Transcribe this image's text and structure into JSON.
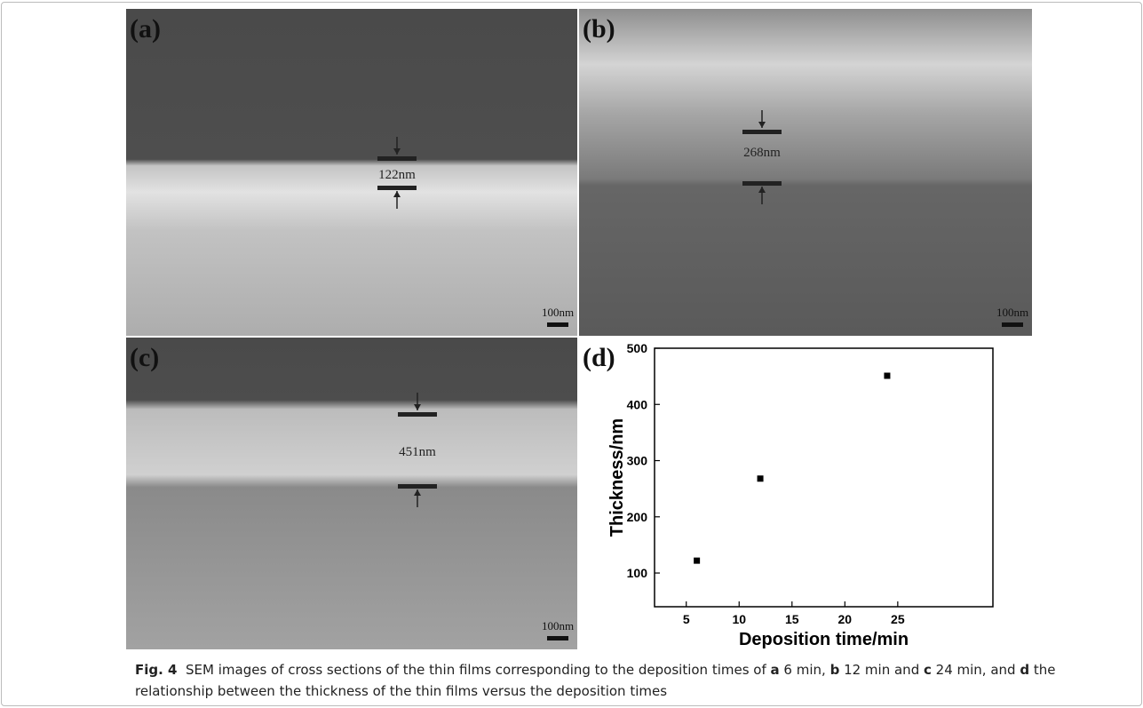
{
  "panels": [
    {
      "label": "(a)",
      "thickness": "122nm",
      "scale": "100nm"
    },
    {
      "label": "(b)",
      "thickness": "268nm",
      "scale": "100nm"
    },
    {
      "label": "(c)",
      "thickness": "451nm",
      "scale": "100nm"
    }
  ],
  "chart_data": {
    "type": "scatter",
    "panel_label": "(d)",
    "x_label": "Deposition time/min",
    "y_label": "Thickness/nm",
    "x": [
      6,
      12,
      24
    ],
    "values": [
      122,
      268,
      451
    ],
    "color": "#000000",
    "xlim": [
      2,
      34
    ],
    "xticks": [
      5,
      10,
      15,
      20,
      25
    ],
    "ylim": [
      40,
      500
    ],
    "yticks": [
      100,
      200,
      300,
      400,
      500
    ],
    "grid": false
  },
  "caption": {
    "parts": [
      {
        "text": "Fig. 4",
        "bold": true
      },
      {
        "text": "  SEM images of cross sections of the thin films corresponding to the deposition times of ",
        "bold": false
      },
      {
        "text": "a",
        "bold": true
      },
      {
        "text": " 6 min, ",
        "bold": false
      },
      {
        "text": "b",
        "bold": true
      },
      {
        "text": " 12 min and ",
        "bold": false
      },
      {
        "text": "c",
        "bold": true
      },
      {
        "text": " 24 min, and ",
        "bold": false
      },
      {
        "text": "d",
        "bold": true
      },
      {
        "text": " the relationship between the thickness of the thin films versus the deposition times",
        "bold": false
      }
    ]
  }
}
